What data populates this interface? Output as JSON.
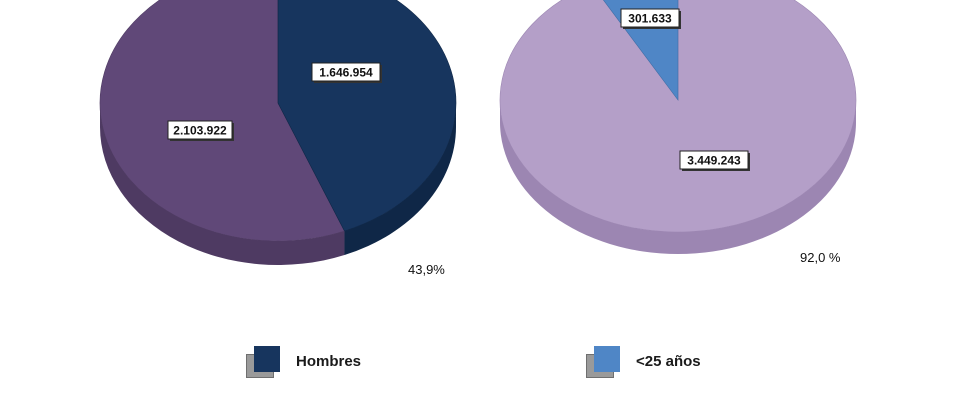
{
  "chart_data": [
    {
      "type": "pie",
      "slices": [
        {
          "label": "2.103.922",
          "value": 2103922,
          "color": "#604878",
          "side": "#4e3a62"
        },
        {
          "label": "1.646.954",
          "value": 1646954,
          "color": "#17355e",
          "side": "#0f2747"
        }
      ],
      "percent_label": "43,9%",
      "legend": {
        "name": "Hombres",
        "color": "#17355e"
      }
    },
    {
      "type": "pie",
      "slices": [
        {
          "label": "3.449.243",
          "value": 3449243,
          "color": "#b49fc8",
          "side": "#9c86b2"
        },
        {
          "label": "301.633",
          "value": 301633,
          "color": "#4f86c6",
          "side": "#3f6ea7"
        }
      ],
      "percent_label": "92,0 %",
      "legend": {
        "name": "<25 años",
        "color": "#4f86c6"
      }
    }
  ]
}
